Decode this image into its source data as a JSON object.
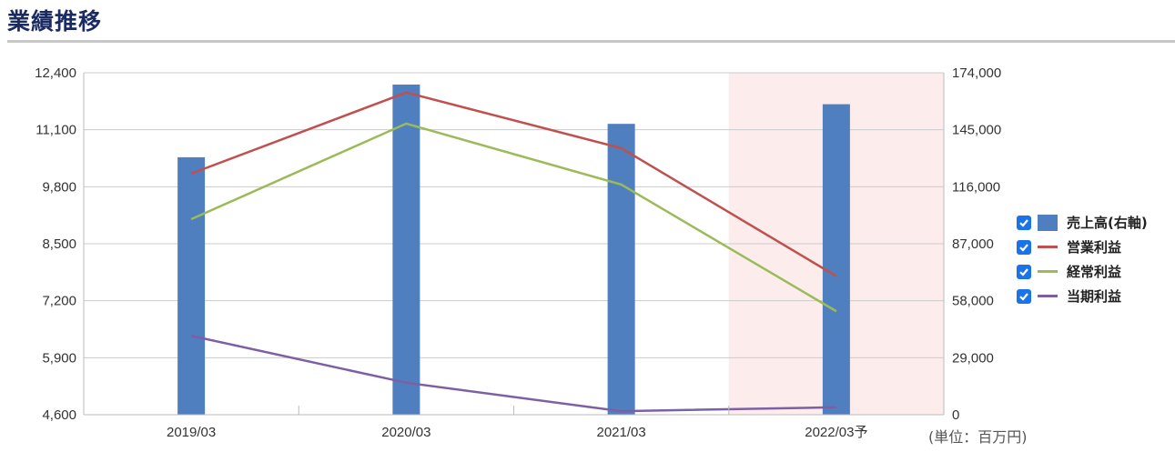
{
  "page": {
    "title": "業績推移",
    "unit_note": "(単位：百万円)"
  },
  "colors": {
    "bar": "#4f7fbe",
    "operating": "#c0504d",
    "ordinary": "#9bbb59",
    "net": "#7d5fa5",
    "forecast_bg": "#fdecec",
    "grid": "#cccccc"
  },
  "legend": [
    {
      "label": "売上高(右軸)",
      "kind": "bar",
      "color": "#4f7fbe",
      "checked": true
    },
    {
      "label": "営業利益",
      "kind": "line",
      "color": "#c0504d",
      "checked": true
    },
    {
      "label": "経常利益",
      "kind": "line",
      "color": "#9bbb59",
      "checked": true
    },
    {
      "label": "当期利益",
      "kind": "line",
      "color": "#7d5fa5",
      "checked": true
    }
  ],
  "chart_data": {
    "type": "bar",
    "categories": [
      "2019/03",
      "2020/03",
      "2021/03",
      "2022/03予"
    ],
    "forecast_category": "2022/03予",
    "left_axis": {
      "ylim": [
        4600,
        12400
      ],
      "ticks": [
        "4,600",
        "5,900",
        "7,200",
        "8,500",
        "9,800",
        "11,100",
        "12,400"
      ],
      "tick_values": [
        4600,
        5900,
        7200,
        8500,
        9800,
        11100,
        12400
      ]
    },
    "right_axis": {
      "ylim": [
        0,
        174000
      ],
      "ticks": [
        "0",
        "29,000",
        "58,000",
        "87,000",
        "116,000",
        "145,000",
        "174,000"
      ],
      "tick_values": [
        0,
        29000,
        58000,
        87000,
        116000,
        145000,
        174000
      ]
    },
    "grid": true,
    "legend_position": "right",
    "series": [
      {
        "name": "売上高(右軸)",
        "type": "bar",
        "axis": "right",
        "color": "#4f7fbe",
        "values": [
          131000,
          168000,
          148000,
          158000
        ]
      },
      {
        "name": "営業利益",
        "type": "line",
        "axis": "left",
        "color": "#c0504d",
        "values": [
          10100,
          11950,
          10680,
          7760
        ]
      },
      {
        "name": "経常利益",
        "type": "line",
        "axis": "left",
        "color": "#9bbb59",
        "values": [
          9060,
          11240,
          9850,
          6960
        ]
      },
      {
        "name": "当期利益",
        "type": "line",
        "axis": "left",
        "color": "#7d5fa5",
        "values": [
          6400,
          5330,
          4680,
          4770
        ]
      }
    ]
  }
}
